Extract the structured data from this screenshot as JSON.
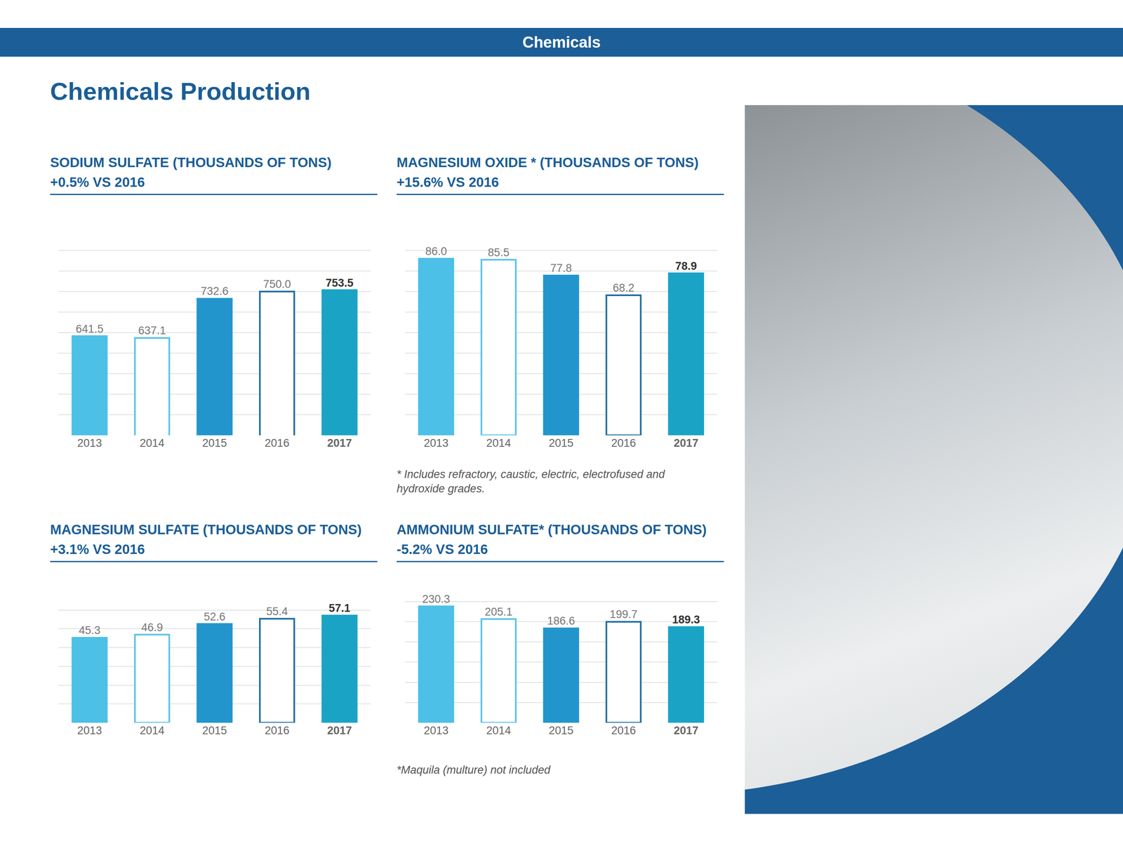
{
  "header": "Chemicals",
  "page_title": "Chemicals Production",
  "chart_data": [
    {
      "type": "bar",
      "title": "SODIUM SULFATE (THOUSANDS OF TONS)",
      "subtitle": "+0.5% VS 2016",
      "categories": [
        "2013",
        "2014",
        "2015",
        "2016",
        "2017"
      ],
      "values": [
        641.5,
        637.1,
        732.6,
        750.0,
        753.5
      ],
      "value_labels": [
        "641.5",
        "637.1",
        "732.6",
        "750.0",
        "753.5"
      ],
      "colors": [
        "#4cc0e6",
        "#ffffff",
        "#2296cc",
        "#ffffff",
        "#1ba3c6"
      ],
      "ylim": [
        400,
        900
      ],
      "yticks": [
        400,
        450,
        500,
        550,
        600,
        650,
        700,
        750,
        800,
        850,
        900
      ],
      "grid": true,
      "data_labels": true,
      "tick_labels": "x"
    },
    {
      "type": "bar",
      "title": "MAGNESIUM OXIDE * (THOUSANDS OF TONS)",
      "subtitle": "+15.6% VS 2016",
      "categories": [
        "2013",
        "2014",
        "2015",
        "2016",
        "2017"
      ],
      "values": [
        86.0,
        85.5,
        77.8,
        68.2,
        78.9
      ],
      "value_labels": [
        "86.0",
        "85.5",
        "77.8",
        "68.2",
        "78.9"
      ],
      "colors": [
        "#4cc0e6",
        "#ffffff",
        "#2296cc",
        "#ffffff",
        "#1ba3c6"
      ],
      "ylim": [
        0,
        100
      ],
      "yticks": [
        0,
        10,
        20,
        30,
        40,
        50,
        60,
        70,
        80,
        90,
        100
      ],
      "grid": true,
      "data_labels": true,
      "tick_labels": "x",
      "footnote": "* Includes refractory, caustic, electric, electrofused and hydroxide grades."
    },
    {
      "type": "bar",
      "title": "MAGNESIUM SULFATE (THOUSANDS OF TONS)",
      "subtitle": "+3.1% VS 2016",
      "categories": [
        "2013",
        "2014",
        "2015",
        "2016",
        "2017"
      ],
      "values": [
        45.3,
        46.9,
        52.6,
        55.4,
        57.1
      ],
      "value_labels": [
        "45.3",
        "46.9",
        "52.6",
        "55.4",
        "57.1"
      ],
      "colors": [
        "#4cc0e6",
        "#ffffff",
        "#2296cc",
        "#ffffff",
        "#1ba3c6"
      ],
      "ylim": [
        0,
        70
      ],
      "yticks": [
        0,
        10,
        20,
        30,
        40,
        50,
        60,
        70
      ],
      "grid": true,
      "data_labels": true,
      "tick_labels": "x"
    },
    {
      "type": "bar",
      "title": "AMMONIUM SULFATE* (THOUSANDS OF TONS)",
      "subtitle": "-5.2% VS 2016",
      "categories": [
        "2013",
        "2014",
        "2015",
        "2016",
        "2017"
      ],
      "values": [
        230.3,
        205.1,
        186.6,
        199.7,
        189.3
      ],
      "value_labels": [
        "230.3",
        "205.1",
        "186.6",
        "199.7",
        "189.3"
      ],
      "colors": [
        "#4cc0e6",
        "#ffffff",
        "#2296cc",
        "#ffffff",
        "#1ba3c6"
      ],
      "ylim": [
        0,
        260
      ],
      "yticks": [
        0,
        40,
        80,
        120,
        160,
        200,
        240,
        260
      ],
      "grid": true,
      "data_labels": true,
      "tick_labels": "x",
      "footnote": "*Maquila (multure) not included"
    }
  ]
}
